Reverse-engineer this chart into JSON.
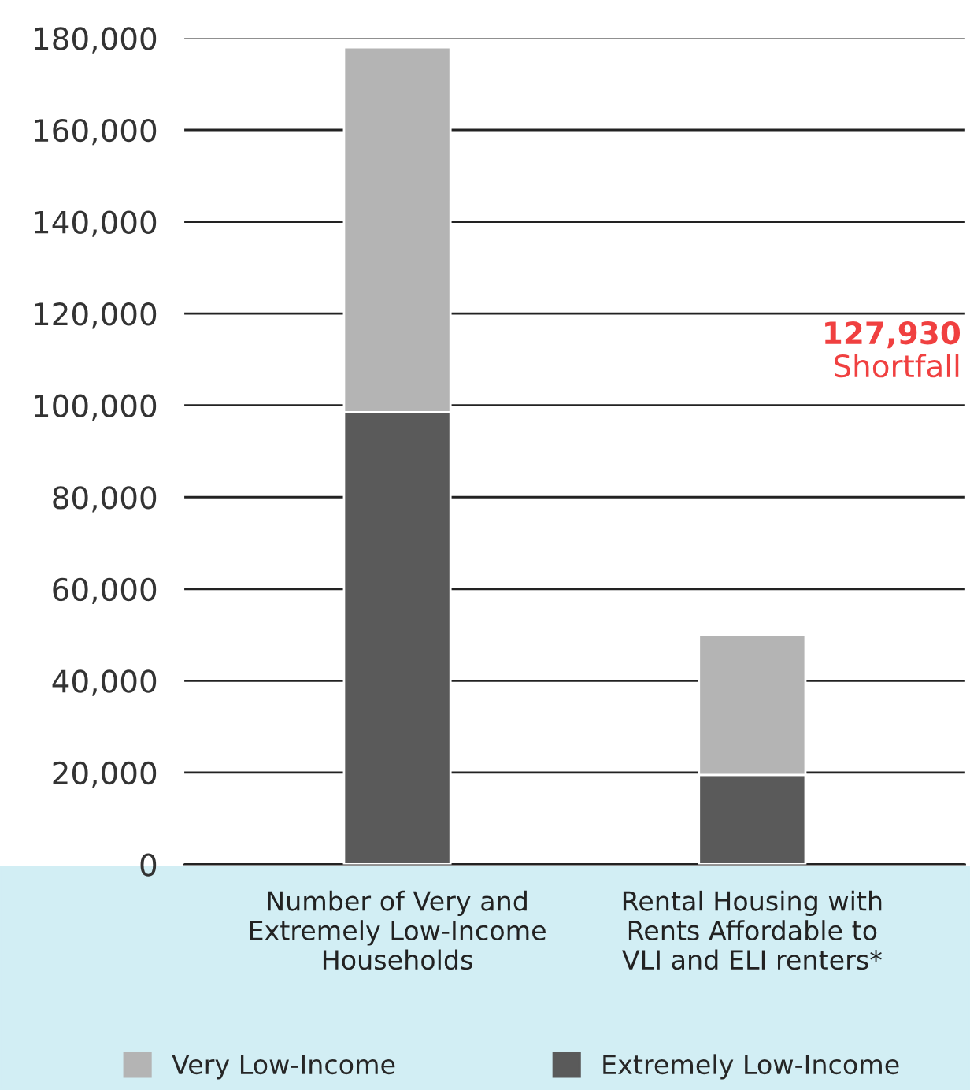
{
  "chart_data": {
    "type": "bar",
    "stacked": true,
    "categories": [
      "Number of Very and\nExtremely Low-Income\nHouseholds",
      "Rental Housing with\nRents Affordable to\nVLI and ELI renters*"
    ],
    "series": [
      {
        "name": "Extremely Low-Income",
        "color": "#5a5a5a",
        "values": [
          98500,
          19500
        ]
      },
      {
        "name": "Very Low-Income",
        "color": "#b4b4b4",
        "values": [
          79500,
          30500
        ]
      }
    ],
    "ylim": [
      0,
      180000
    ],
    "yticks": [
      {
        "value": 0,
        "label": "0"
      },
      {
        "value": 20000,
        "label": "20,000"
      },
      {
        "value": 40000,
        "label": "40,000"
      },
      {
        "value": 60000,
        "label": "60,000"
      },
      {
        "value": 80000,
        "label": "80,000"
      },
      {
        "value": 100000,
        "label": "100,000"
      },
      {
        "value": 120000,
        "label": "120,000"
      },
      {
        "value": 140000,
        "label": "140,000"
      },
      {
        "value": 160000,
        "label": "160,000"
      },
      {
        "value": 180000,
        "label": "180,000"
      }
    ],
    "grid": "y",
    "legend": "bottom",
    "annotations": [
      "127,930",
      "Shortfall"
    ]
  }
}
